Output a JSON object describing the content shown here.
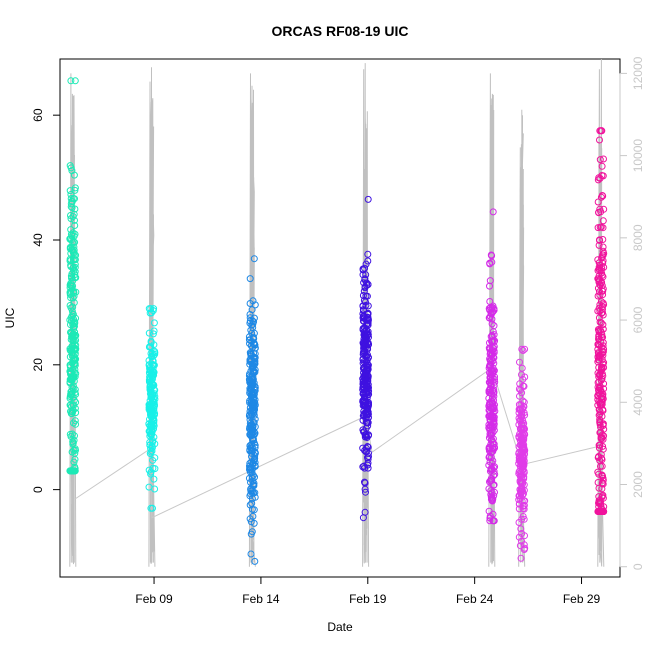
{
  "chart_data": {
    "type": "scatter",
    "title": "ORCAS RF08-19 UIC",
    "xlabel": "Date",
    "ylabel": "UIC",
    "ylabel_right": "",
    "x_ticks": [
      "Feb 09",
      "Feb 14",
      "Feb 19",
      "Feb 24",
      "Feb 29"
    ],
    "x_tick_day": [
      9,
      14,
      19,
      24,
      29
    ],
    "xlim_day": [
      4.6,
      30.8
    ],
    "y_ticks": [
      0,
      20,
      40,
      60
    ],
    "ylim": [
      -14,
      69
    ],
    "y2_ticks": [
      0,
      2000,
      4000,
      6000,
      8000,
      10000,
      12000
    ],
    "y2lim": [
      -250,
      12350
    ],
    "grid": false,
    "legend": "none",
    "connector_line": {
      "color": "#c8c8c8",
      "points": [
        [
          5.3,
          -1.5
        ],
        [
          8.8,
          6.5
        ],
        [
          8.9,
          -4.5
        ],
        [
          18.9,
          11.8
        ],
        [
          19.2,
          6.0
        ],
        [
          24.8,
          19.5
        ],
        [
          26.2,
          4.0
        ],
        [
          29.9,
          7.0
        ]
      ]
    },
    "altitude_color": "#c0c0c0",
    "flights": [
      {
        "day": 5.2,
        "color": "#1de9b6",
        "center": 25,
        "spread": 13,
        "min": 3,
        "max": 65.5,
        "n": 260,
        "alt_spikes": [
          12000,
          11500,
          9500
        ]
      },
      {
        "day": 8.9,
        "color": "#18f0e8",
        "center": 14,
        "spread": 6,
        "min": -3,
        "max": 29,
        "n": 180,
        "alt_spikes": [
          11800,
          12150,
          6200
        ]
      },
      {
        "day": 13.6,
        "color": "#1e88e5",
        "center": 12,
        "spread": 9,
        "min": -11.5,
        "max": 37,
        "n": 260,
        "alt_spikes": [
          12000,
          11700,
          11600
        ]
      },
      {
        "day": 18.9,
        "color": "#3f12e0",
        "center": 19,
        "spread": 8,
        "min": -4.5,
        "max": 46.5,
        "n": 280,
        "alt_spikes": [
          12100,
          12250,
          8000
        ]
      },
      {
        "day": 24.8,
        "color": "#d42be8",
        "center": 14,
        "spread": 9,
        "min": -5,
        "max": 44.5,
        "n": 240,
        "alt_spikes": [
          12000,
          11500
        ]
      },
      {
        "day": 26.2,
        "color": "#e03ce8",
        "center": 6,
        "spread": 6,
        "min": -11,
        "max": 22.5,
        "n": 200,
        "alt_spikes": [
          10200,
          3200
        ]
      },
      {
        "day": 29.9,
        "color": "#f0139c",
        "center": 20,
        "spread": 16,
        "min": -3.5,
        "max": 57.5,
        "n": 280,
        "alt_spikes": [
          12100,
          12350
        ]
      }
    ]
  }
}
